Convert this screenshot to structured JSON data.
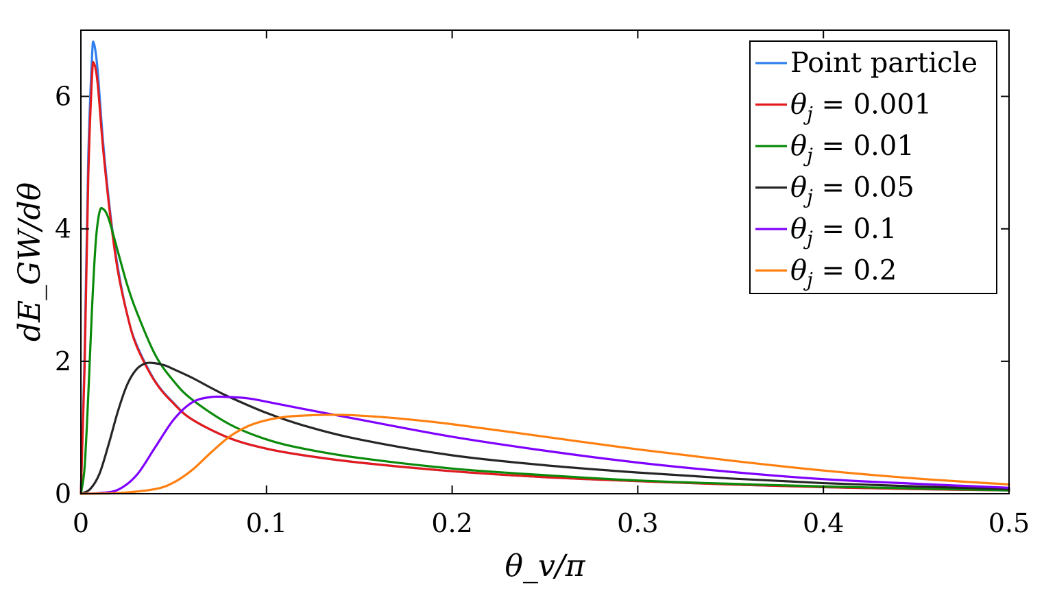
{
  "chart_data": {
    "type": "line",
    "title": "",
    "xlabel": "θ_v/π",
    "ylabel": "dE_GW/dθ",
    "xlim": [
      0,
      0.5
    ],
    "ylim": [
      0,
      7
    ],
    "xticks": [
      0,
      0.1,
      0.2,
      0.3,
      0.4,
      0.5
    ],
    "xtick_labels": [
      "0",
      "0.1",
      "0.2",
      "0.3",
      "0.4",
      "0.5"
    ],
    "yticks": [
      0,
      2,
      4,
      6
    ],
    "ytick_labels": [
      "0",
      "2",
      "4",
      "6"
    ],
    "grid": false,
    "legend_position": "top-right",
    "series": [
      {
        "name": "Point particle",
        "color": "#2f7ff0",
        "x": [
          0,
          0.002,
          0.004,
          0.006,
          0.007,
          0.009,
          0.012,
          0.016,
          0.02,
          0.025,
          0.03,
          0.04,
          0.05,
          0.06,
          0.08,
          0.1,
          0.12,
          0.15,
          0.2,
          0.25,
          0.3,
          0.35,
          0.4,
          0.45,
          0.5
        ],
        "y": [
          0,
          2.1,
          5.1,
          6.6,
          6.8,
          6.4,
          5.3,
          4.2,
          3.4,
          2.7,
          2.25,
          1.7,
          1.37,
          1.12,
          0.84,
          0.68,
          0.58,
          0.47,
          0.34,
          0.25,
          0.19,
          0.14,
          0.1,
          0.07,
          0.05
        ]
      },
      {
        "name": "θ_j = 0.001",
        "label_prefix": "θ",
        "label_sub": "j",
        "label_suffix": " = 0.001",
        "color": "#e41a1c",
        "x": [
          0,
          0.002,
          0.004,
          0.006,
          0.007,
          0.009,
          0.012,
          0.016,
          0.02,
          0.025,
          0.03,
          0.04,
          0.05,
          0.06,
          0.08,
          0.1,
          0.12,
          0.15,
          0.2,
          0.25,
          0.3,
          0.35,
          0.4,
          0.45,
          0.5
        ],
        "y": [
          0,
          1.9,
          4.8,
          6.3,
          6.5,
          6.2,
          5.2,
          4.15,
          3.35,
          2.7,
          2.23,
          1.69,
          1.36,
          1.12,
          0.84,
          0.68,
          0.58,
          0.47,
          0.34,
          0.25,
          0.19,
          0.14,
          0.1,
          0.07,
          0.05
        ]
      },
      {
        "name": "θ_j = 0.01",
        "label_prefix": "θ",
        "label_sub": "j",
        "label_suffix": " = 0.01",
        "color": "#0a8a0a",
        "x": [
          0,
          0.002,
          0.004,
          0.006,
          0.008,
          0.01,
          0.012,
          0.015,
          0.02,
          0.025,
          0.03,
          0.04,
          0.05,
          0.06,
          0.08,
          0.1,
          0.12,
          0.15,
          0.2,
          0.25,
          0.3,
          0.35,
          0.4,
          0.45,
          0.5
        ],
        "y": [
          0,
          0.4,
          1.5,
          2.8,
          3.8,
          4.25,
          4.3,
          4.15,
          3.65,
          3.15,
          2.75,
          2.1,
          1.7,
          1.42,
          1.05,
          0.82,
          0.68,
          0.54,
          0.38,
          0.28,
          0.2,
          0.15,
          0.11,
          0.08,
          0.05
        ]
      },
      {
        "name": "θ_j = 0.05",
        "label_prefix": "θ",
        "label_sub": "j",
        "label_suffix": " = 0.05",
        "color": "#262626",
        "x": [
          0,
          0.005,
          0.01,
          0.015,
          0.02,
          0.025,
          0.03,
          0.035,
          0.04,
          0.045,
          0.05,
          0.06,
          0.07,
          0.08,
          0.1,
          0.12,
          0.15,
          0.2,
          0.25,
          0.3,
          0.35,
          0.4,
          0.45,
          0.5
        ],
        "y": [
          0,
          0.07,
          0.3,
          0.75,
          1.25,
          1.65,
          1.88,
          1.97,
          1.97,
          1.94,
          1.88,
          1.75,
          1.6,
          1.46,
          1.22,
          1.03,
          0.82,
          0.58,
          0.43,
          0.32,
          0.23,
          0.16,
          0.11,
          0.07
        ]
      },
      {
        "name": "θ_j = 0.1",
        "label_prefix": "θ",
        "label_sub": "j",
        "label_suffix": " = 0.1",
        "color": "#7f00ff",
        "x": [
          0,
          0.01,
          0.02,
          0.03,
          0.04,
          0.05,
          0.06,
          0.07,
          0.08,
          0.09,
          0.1,
          0.12,
          0.15,
          0.2,
          0.25,
          0.3,
          0.35,
          0.4,
          0.45,
          0.5
        ],
        "y": [
          0,
          0.01,
          0.06,
          0.28,
          0.7,
          1.12,
          1.38,
          1.46,
          1.46,
          1.44,
          1.39,
          1.28,
          1.12,
          0.86,
          0.65,
          0.47,
          0.33,
          0.22,
          0.15,
          0.09
        ]
      },
      {
        "name": "θ_j = 0.2",
        "label_prefix": "θ",
        "label_sub": "j",
        "label_suffix": " = 0.2",
        "color": "#ff7f0e",
        "x": [
          0,
          0.02,
          0.04,
          0.05,
          0.06,
          0.07,
          0.08,
          0.09,
          0.1,
          0.11,
          0.12,
          0.13,
          0.14,
          0.15,
          0.17,
          0.2,
          0.25,
          0.3,
          0.35,
          0.4,
          0.45,
          0.5
        ],
        "y": [
          0,
          0.01,
          0.07,
          0.17,
          0.36,
          0.62,
          0.86,
          1.02,
          1.11,
          1.16,
          1.18,
          1.19,
          1.19,
          1.18,
          1.14,
          1.05,
          0.86,
          0.67,
          0.5,
          0.35,
          0.23,
          0.14
        ]
      }
    ]
  }
}
